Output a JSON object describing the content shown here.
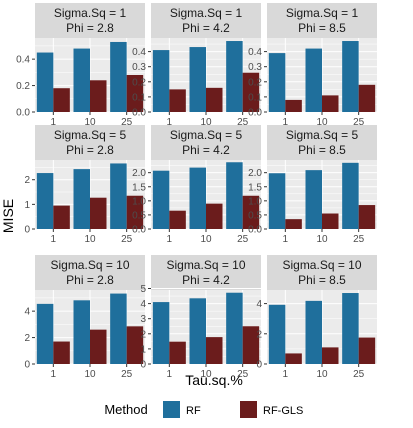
{
  "chart_data": {
    "type": "bar",
    "layout": "facet-grid-3x3",
    "xlabel": "Tau.sq.%",
    "ylabel": "MISE",
    "categories": [
      "1",
      "10",
      "25"
    ],
    "legend": {
      "title": "Method",
      "placement": "bottom",
      "entries": [
        {
          "name": "RF",
          "color": "#1f6f9c"
        },
        {
          "name": "RF-GLS",
          "color": "#6b1c1c"
        }
      ]
    },
    "colors": {
      "panel_bg": "#ebebeb",
      "strip_bg": "#d9d9d9",
      "grid": "#ffffff",
      "rf": "#1f6f9c",
      "rfgls": "#6b1c1c"
    },
    "panels": [
      {
        "strip": [
          "Sigma.Sq = 1",
          "Phi = 2.8"
        ],
        "yticks": [
          "0.0",
          "0.2",
          "0.4"
        ],
        "ytick_values": [
          0,
          0.2,
          0.4
        ],
        "ylim": [
          0,
          0.56
        ],
        "series": [
          {
            "name": "RF",
            "values": [
              0.45,
              0.48,
              0.53
            ]
          },
          {
            "name": "RF-GLS",
            "values": [
              0.18,
              0.24,
              0.28
            ]
          }
        ]
      },
      {
        "strip": [
          "Sigma.Sq = 1",
          "Phi = 4.2"
        ],
        "yticks": [
          "0.0",
          "0.1",
          "0.2",
          "0.3",
          "0.4"
        ],
        "ytick_values": [
          0,
          0.1,
          0.2,
          0.3,
          0.4
        ],
        "ylim": [
          0,
          0.49
        ],
        "series": [
          {
            "name": "RF",
            "values": [
              0.41,
              0.43,
              0.47
            ]
          },
          {
            "name": "RF-GLS",
            "values": [
              0.15,
              0.16,
              0.26
            ]
          }
        ]
      },
      {
        "strip": [
          "Sigma.Sq = 1",
          "Phi = 8.5"
        ],
        "yticks": [
          "0.0",
          "0.1",
          "0.2",
          "0.3",
          "0.4"
        ],
        "ytick_values": [
          0,
          0.1,
          0.2,
          0.3,
          0.4
        ],
        "ylim": [
          0,
          0.49
        ],
        "series": [
          {
            "name": "RF",
            "values": [
              0.39,
              0.42,
              0.47
            ]
          },
          {
            "name": "RF-GLS",
            "values": [
              0.08,
              0.11,
              0.18
            ]
          }
        ]
      },
      {
        "strip": [
          "Sigma.Sq = 5",
          "Phi = 2.8"
        ],
        "yticks": [
          "0",
          "1",
          "2"
        ],
        "ytick_values": [
          0,
          1,
          2
        ],
        "ylim": [
          0,
          2.8
        ],
        "series": [
          {
            "name": "RF",
            "values": [
              2.27,
              2.43,
              2.66
            ]
          },
          {
            "name": "RF-GLS",
            "values": [
              0.95,
              1.27,
              1.35
            ]
          }
        ]
      },
      {
        "strip": [
          "Sigma.Sq = 5",
          "Phi = 4.2"
        ],
        "yticks": [
          "0.0",
          "0.5",
          "1.0",
          "1.5",
          "2.0"
        ],
        "ytick_values": [
          0,
          0.5,
          1,
          1.5,
          2
        ],
        "ylim": [
          0,
          2.45
        ],
        "series": [
          {
            "name": "RF",
            "values": [
              2.07,
              2.18,
              2.37
            ]
          },
          {
            "name": "RF-GLS",
            "values": [
              0.65,
              0.9,
              1.18
            ]
          }
        ]
      },
      {
        "strip": [
          "Sigma.Sq = 5",
          "Phi = 8.5"
        ],
        "yticks": [
          "0.0",
          "0.5",
          "1.0",
          "1.5",
          "2.0"
        ],
        "ytick_values": [
          0,
          0.5,
          1,
          1.5,
          2
        ],
        "ylim": [
          0,
          2.45
        ],
        "series": [
          {
            "name": "RF",
            "values": [
              1.98,
              2.09,
              2.35
            ]
          },
          {
            "name": "RF-GLS",
            "values": [
              0.35,
              0.55,
              0.85
            ]
          }
        ]
      },
      {
        "strip": [
          "Sigma.Sq = 10",
          "Phi = 2.8"
        ],
        "yticks": [
          "0",
          "2",
          "4"
        ],
        "ytick_values": [
          0,
          2,
          4
        ],
        "ylim": [
          0,
          5.6
        ],
        "series": [
          {
            "name": "RF",
            "values": [
              4.55,
              4.82,
              5.33
            ]
          },
          {
            "name": "RF-GLS",
            "values": [
              1.7,
              2.6,
              2.85
            ]
          }
        ]
      },
      {
        "strip": [
          "Sigma.Sq = 10",
          "Phi = 4.2"
        ],
        "yticks": [
          "0",
          "1",
          "2",
          "3",
          "4",
          "5"
        ],
        "ytick_values": [
          0,
          1,
          2,
          3,
          4,
          5
        ],
        "ylim": [
          0,
          4.9
        ],
        "series": [
          {
            "name": "RF",
            "values": [
              4.1,
              4.35,
              4.72
            ]
          },
          {
            "name": "RF-GLS",
            "values": [
              1.48,
              1.78,
              2.5
            ]
          }
        ]
      },
      {
        "strip": [
          "Sigma.Sq = 10",
          "Phi = 8.5"
        ],
        "yticks": [
          "0",
          "2",
          "4"
        ],
        "ytick_values": [
          0,
          2,
          4
        ],
        "ylim": [
          0,
          4.9
        ],
        "series": [
          {
            "name": "RF",
            "values": [
              3.92,
              4.18,
              4.7
            ]
          },
          {
            "name": "RF-GLS",
            "values": [
              0.7,
              1.1,
              1.75
            ]
          }
        ]
      }
    ]
  }
}
